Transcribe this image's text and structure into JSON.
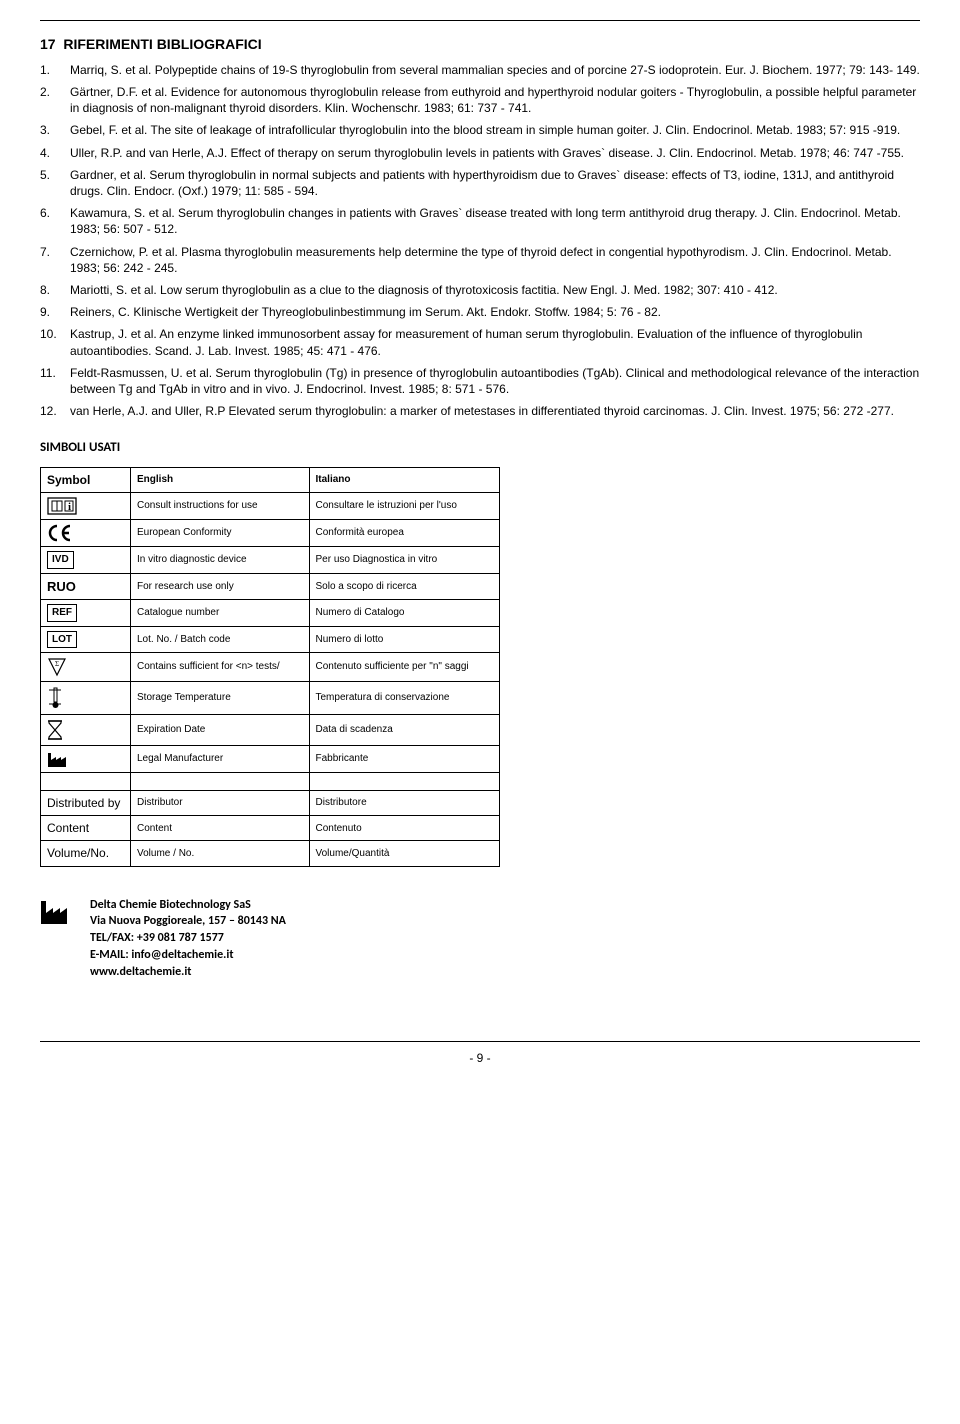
{
  "section_number": "17",
  "section_title": "RIFERIMENTI BIBLIOGRAFICI",
  "references": [
    {
      "n": "1.",
      "text": "Marriq, S. et al. Polypeptide chains of 19-S thyroglobulin from several mammalian species and of porcine 27-S iodoprotein. Eur. J. Biochem. 1977; 79: 143- 149."
    },
    {
      "n": "2.",
      "text": "Gärtner, D.F. et al. Evidence for autonomous thyroglobulin release from euthyroid and hyperthyroid nodular goiters - Thyroglobulin, a possible helpful parameter in diagnosis of non-malignant thyroid disorders. Klin. Wochenschr. 1983; 61: 737 - 741."
    },
    {
      "n": "3.",
      "text": "Gebel, F. et al. The site of leakage of intrafollicular thyroglobulin into the blood stream in simple human goiter. J. Clin. Endocrinol. Metab. 1983; 57: 915 -919."
    },
    {
      "n": "4.",
      "text": "Uller, R.P. and van Herle, A.J. Effect of therapy on serum thyroglobulin levels in patients with Graves` disease. J. Clin. Endocrinol. Metab. 1978; 46: 747 -755."
    },
    {
      "n": "5.",
      "text": "Gardner, et al. Serum thyroglobulin in normal subjects and patients with hyperthyroidism due to Graves` disease: effects of T3, iodine, 131J, and antithyroid drugs. Clin. Endocr. (Oxf.) 1979; 11: 585 - 594."
    },
    {
      "n": "6.",
      "text": "Kawamura, S. et al. Serum thyroglobulin changes in patients with Graves` disease treated with long term antithyroid drug therapy. J. Clin. Endocrinol. Metab. 1983; 56: 507 - 512."
    },
    {
      "n": "7.",
      "text": "Czernichow, P. et al. Plasma thyroglobulin measurements help determine the type of thyroid defect in congential hypothyrodism. J. Clin. Endocrinol. Metab. 1983; 56: 242 - 245."
    },
    {
      "n": "8.",
      "text": "Mariotti, S. et al. Low serum thyroglobulin as a clue to the diagnosis of thyrotoxicosis factitia. New Engl. J. Med. 1982; 307: 410 - 412."
    },
    {
      "n": "9.",
      "text": "Reiners, C. Klinische Wertigkeit der Thyreoglobulinbestimmung im Serum. Akt. Endokr. Stoffw. 1984; 5: 76 - 82."
    },
    {
      "n": "10.",
      "text": "Kastrup, J. et al. An enzyme linked immunosorbent assay for measurement of human serum thyroglobulin. Evaluation of the influence of thyroglobulin autoantibodies. Scand. J. Lab. Invest. 1985; 45: 471 - 476."
    },
    {
      "n": "11.",
      "text": "Feldt-Rasmussen, U. et al. Serum thyroglobulin (Tg) in presence of thyroglobulin autoantibodies (TgAb). Clinical and methodological relevance of the interaction between Tg and TgAb in vitro and in vivo. J. Endocrinol. Invest. 1985; 8: 571 - 576."
    },
    {
      "n": "12.",
      "text": "van Herle, A.J. and Uller, R.P Elevated serum thyroglobulin: a marker of metestases in differentiated thyroid carcinomas. J. Clin. Invest. 1975; 56: 272 -277."
    }
  ],
  "symbols_heading": "SIMBOLI USATI",
  "table": {
    "headers": {
      "symbol": "Symbol",
      "english": "English",
      "italiano": "Italiano"
    },
    "rows": [
      {
        "icon": "manual",
        "en": "Consult instructions for use",
        "it": "Consultare le istruzioni per l'uso"
      },
      {
        "icon": "ce",
        "en": "European Conformity",
        "it": "Conformità europea"
      },
      {
        "icon": "ivd",
        "en": "In vitro diagnostic device",
        "it": "Per uso Diagnostica in vitro"
      },
      {
        "icon": "ruo",
        "en": "For research use only",
        "it": "Solo a scopo di ricerca"
      },
      {
        "icon": "ref",
        "en": "Catalogue number",
        "it": "Numero di Catalogo"
      },
      {
        "icon": "lot",
        "en": "Lot. No. / Batch code",
        "it": "Numero di lotto"
      },
      {
        "icon": "sigma",
        "en": "Contains sufficient for <n> tests/",
        "it": "Contenuto sufficiente per \"n\" saggi"
      },
      {
        "icon": "temp",
        "en": "Storage Temperature",
        "it": "Temperatura di conservazione"
      },
      {
        "icon": "expiry",
        "en": "Expiration Date",
        "it": "Data di scadenza"
      },
      {
        "icon": "mfr",
        "en": "Legal Manufacturer",
        "it": "Fabbricante"
      }
    ],
    "text_rows": [
      {
        "label": "Distributed by",
        "en": "Distributor",
        "it": "Distributore"
      },
      {
        "label": "Content",
        "en": "Content",
        "it": "Contenuto"
      },
      {
        "label": "Volume/No.",
        "en": "Volume / No.",
        "it": "Volume/Quantità"
      }
    ]
  },
  "manufacturer": {
    "name": "Delta Chemie Biotechnology SaS",
    "address": "Via Nuova Poggioreale, 157 – 80143 NA",
    "tel": "TEL/FAX: +39 081 787 1577",
    "email": "E-MAIL: info@deltachemie.it",
    "web": "www.deltachemie.it"
  },
  "page_number": "- 9 -",
  "colors": {
    "text": "#000000",
    "background": "#ffffff",
    "border": "#000000"
  },
  "icons": {
    "ruo_text": "RUO",
    "ivd_text": "IVD",
    "ref_text": "REF",
    "lot_text": "LOT"
  }
}
